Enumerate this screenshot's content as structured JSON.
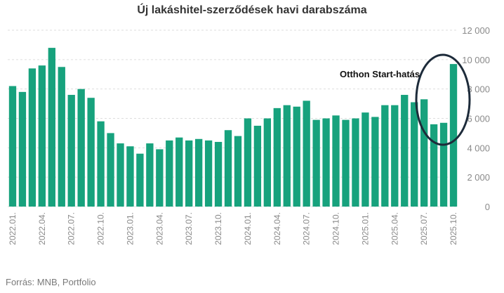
{
  "chart_data": {
    "type": "bar",
    "title": "Új lakáshitel-szerződések havi darabszáma",
    "source": "Forrás: MNB, Portfolio",
    "color": "#17a27d",
    "ylim": [
      0,
      12000
    ],
    "y_ticks": [
      0,
      2000,
      4000,
      6000,
      8000,
      10000,
      12000
    ],
    "y_tick_labels": [
      "0",
      "2 000",
      "4 000",
      "6 000",
      "8 000",
      "10 000",
      "12 000"
    ],
    "y_axis_position": "right",
    "grid": "horizontal dashed",
    "categories": [
      "2022.01.",
      "2022.02.",
      "2022.03.",
      "2022.04.",
      "2022.05.",
      "2022.06.",
      "2022.07.",
      "2022.08.",
      "2022.09.",
      "2022.10.",
      "2022.11.",
      "2022.12.",
      "2023.01.",
      "2023.02.",
      "2023.03.",
      "2023.04.",
      "2023.05.",
      "2023.06.",
      "2023.07.",
      "2023.08.",
      "2023.09.",
      "2023.10.",
      "2023.11.",
      "2023.12.",
      "2024.01.",
      "2024.02.",
      "2024.03.",
      "2024.04.",
      "2024.05.",
      "2024.06.",
      "2024.07.",
      "2024.08.",
      "2024.09.",
      "2024.10.",
      "2024.11.",
      "2024.12.",
      "2025.01.",
      "2025.02.",
      "2025.03.",
      "2025.04.",
      "2025.05.",
      "2025.06.",
      "2025.07.",
      "2025.08.",
      "2025.09.",
      "2025.10."
    ],
    "x_tick_labels": [
      "2022.01.",
      "2022.04.",
      "2022.07.",
      "2022.10.",
      "2023.01.",
      "2023.04.",
      "2023.07.",
      "2023.10.",
      "2024.01.",
      "2024.04.",
      "2024.07.",
      "2024.10.",
      "2025.01.",
      "2025.04.",
      "2025.07.",
      "2025.10."
    ],
    "values": [
      8200,
      7800,
      9400,
      9600,
      10800,
      9500,
      7600,
      8000,
      7400,
      5800,
      5000,
      4300,
      4100,
      3600,
      4300,
      3900,
      4500,
      4700,
      4500,
      4600,
      4500,
      4400,
      5200,
      4800,
      6000,
      5500,
      6000,
      6700,
      6900,
      6800,
      7200,
      5900,
      6000,
      6200,
      5900,
      6000,
      6400,
      6100,
      6900,
      6900,
      7600,
      7100,
      7300,
      5600,
      5700,
      9700
    ],
    "annotation": {
      "text": "Otthon Start-hatás",
      "highlight": "ellipse around the last four bars"
    }
  }
}
